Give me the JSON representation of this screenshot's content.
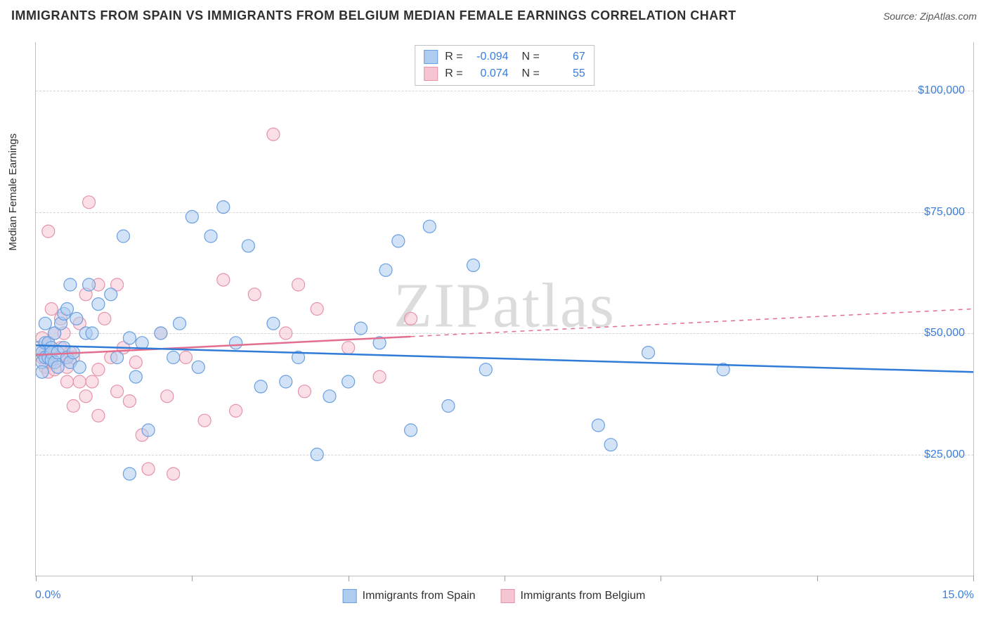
{
  "title": "IMMIGRANTS FROM SPAIN VS IMMIGRANTS FROM BELGIUM MEDIAN FEMALE EARNINGS CORRELATION CHART",
  "source": "Source: ZipAtlas.com",
  "ylabel": "Median Female Earnings",
  "watermark": {
    "bold": "ZIP",
    "thin": "atlas"
  },
  "colors": {
    "spain_fill": "#aeccf0",
    "spain_stroke": "#6a9fe0",
    "belgium_fill": "#f5c6d1",
    "belgium_stroke": "#e593aa",
    "trend_spain": "#2f7bd8",
    "trend_belgium": "#e26f8f",
    "grid": "#d5d5d5",
    "axis_text": "#3b7dd8",
    "text": "#303030",
    "background": "#ffffff"
  },
  "chart": {
    "type": "scatter",
    "xlim": [
      0,
      15
    ],
    "ylim": [
      0,
      110000
    ],
    "y_gridlines": [
      25000,
      50000,
      75000,
      100000
    ],
    "y_tick_labels": [
      "$25,000",
      "$50,000",
      "$75,000",
      "$100,000"
    ],
    "x_ticks": [
      0,
      2.5,
      5,
      7.5,
      10,
      12.5,
      15
    ],
    "x_label_min": "0.0%",
    "x_label_max": "15.0%",
    "marker_radius": 9,
    "marker_stroke_width": 1.2,
    "marker_fill_opacity": 0.55,
    "trend_spain": {
      "y_at_x0": 47500,
      "y_at_xmax": 42000,
      "solid_until_x": 15
    },
    "trend_belgium": {
      "y_at_x0": 45500,
      "y_at_xmax": 55000,
      "solid_until_x": 6
    }
  },
  "stats": {
    "spain": {
      "R": "-0.094",
      "N": "67"
    },
    "belgium": {
      "R": "0.074",
      "N": "55"
    }
  },
  "legend": {
    "spain": "Immigrants from Spain",
    "belgium": "Immigrants from Belgium"
  },
  "series": {
    "spain": [
      [
        0.05,
        47000
      ],
      [
        0.1,
        46000
      ],
      [
        0.1,
        44000
      ],
      [
        0.1,
        42000
      ],
      [
        0.15,
        52000
      ],
      [
        0.15,
        48000
      ],
      [
        0.15,
        45000
      ],
      [
        0.2,
        48000
      ],
      [
        0.2,
        45000
      ],
      [
        0.25,
        47000
      ],
      [
        0.25,
        46000
      ],
      [
        0.25,
        44500
      ],
      [
        0.3,
        50000
      ],
      [
        0.3,
        44000
      ],
      [
        0.35,
        46000
      ],
      [
        0.35,
        43000
      ],
      [
        0.4,
        52000
      ],
      [
        0.45,
        54000
      ],
      [
        0.45,
        47000
      ],
      [
        0.5,
        55000
      ],
      [
        0.5,
        45000
      ],
      [
        0.55,
        60000
      ],
      [
        0.55,
        44000
      ],
      [
        0.6,
        46000
      ],
      [
        0.65,
        53000
      ],
      [
        0.7,
        43000
      ],
      [
        0.8,
        50000
      ],
      [
        0.85,
        60000
      ],
      [
        0.9,
        50000
      ],
      [
        1.0,
        56000
      ],
      [
        1.2,
        58000
      ],
      [
        1.3,
        45000
      ],
      [
        1.4,
        70000
      ],
      [
        1.5,
        49000
      ],
      [
        1.5,
        21000
      ],
      [
        1.6,
        41000
      ],
      [
        1.7,
        48000
      ],
      [
        1.8,
        30000
      ],
      [
        2.0,
        50000
      ],
      [
        2.2,
        45000
      ],
      [
        2.3,
        52000
      ],
      [
        2.5,
        74000
      ],
      [
        2.6,
        43000
      ],
      [
        2.8,
        70000
      ],
      [
        3.0,
        76000
      ],
      [
        3.2,
        48000
      ],
      [
        3.4,
        68000
      ],
      [
        3.6,
        39000
      ],
      [
        3.8,
        52000
      ],
      [
        4.0,
        40000
      ],
      [
        4.2,
        45000
      ],
      [
        4.5,
        25000
      ],
      [
        4.7,
        37000
      ],
      [
        5.0,
        40000
      ],
      [
        5.2,
        51000
      ],
      [
        5.5,
        48000
      ],
      [
        5.6,
        63000
      ],
      [
        5.8,
        69000
      ],
      [
        6.0,
        30000
      ],
      [
        6.3,
        72000
      ],
      [
        6.6,
        35000
      ],
      [
        7.0,
        64000
      ],
      [
        7.2,
        42500
      ],
      [
        9.0,
        31000
      ],
      [
        9.2,
        27000
      ],
      [
        9.8,
        46000
      ],
      [
        11.0,
        42500
      ]
    ],
    "belgium": [
      [
        0.1,
        49000
      ],
      [
        0.1,
        45000
      ],
      [
        0.15,
        46000
      ],
      [
        0.15,
        43000
      ],
      [
        0.2,
        71000
      ],
      [
        0.2,
        48000
      ],
      [
        0.2,
        42000
      ],
      [
        0.25,
        55000
      ],
      [
        0.25,
        44000
      ],
      [
        0.3,
        50000
      ],
      [
        0.3,
        42500
      ],
      [
        0.35,
        45000
      ],
      [
        0.4,
        53000
      ],
      [
        0.4,
        47000
      ],
      [
        0.45,
        50000
      ],
      [
        0.5,
        45000
      ],
      [
        0.5,
        43000
      ],
      [
        0.5,
        40000
      ],
      [
        0.55,
        46000
      ],
      [
        0.6,
        45000
      ],
      [
        0.6,
        35000
      ],
      [
        0.7,
        52000
      ],
      [
        0.7,
        40000
      ],
      [
        0.8,
        58000
      ],
      [
        0.8,
        37000
      ],
      [
        0.85,
        77000
      ],
      [
        0.9,
        40000
      ],
      [
        1.0,
        60000
      ],
      [
        1.0,
        42500
      ],
      [
        1.0,
        33000
      ],
      [
        1.1,
        53000
      ],
      [
        1.2,
        45000
      ],
      [
        1.3,
        60000
      ],
      [
        1.3,
        38000
      ],
      [
        1.4,
        47000
      ],
      [
        1.5,
        36000
      ],
      [
        1.6,
        44000
      ],
      [
        1.7,
        29000
      ],
      [
        1.8,
        22000
      ],
      [
        2.0,
        50000
      ],
      [
        2.1,
        37000
      ],
      [
        2.2,
        21000
      ],
      [
        2.4,
        45000
      ],
      [
        2.7,
        32000
      ],
      [
        3.0,
        61000
      ],
      [
        3.2,
        34000
      ],
      [
        3.5,
        58000
      ],
      [
        3.8,
        91000
      ],
      [
        4.0,
        50000
      ],
      [
        4.2,
        60000
      ],
      [
        4.3,
        38000
      ],
      [
        4.5,
        55000
      ],
      [
        5.0,
        47000
      ],
      [
        5.5,
        41000
      ],
      [
        6.0,
        53000
      ]
    ]
  }
}
